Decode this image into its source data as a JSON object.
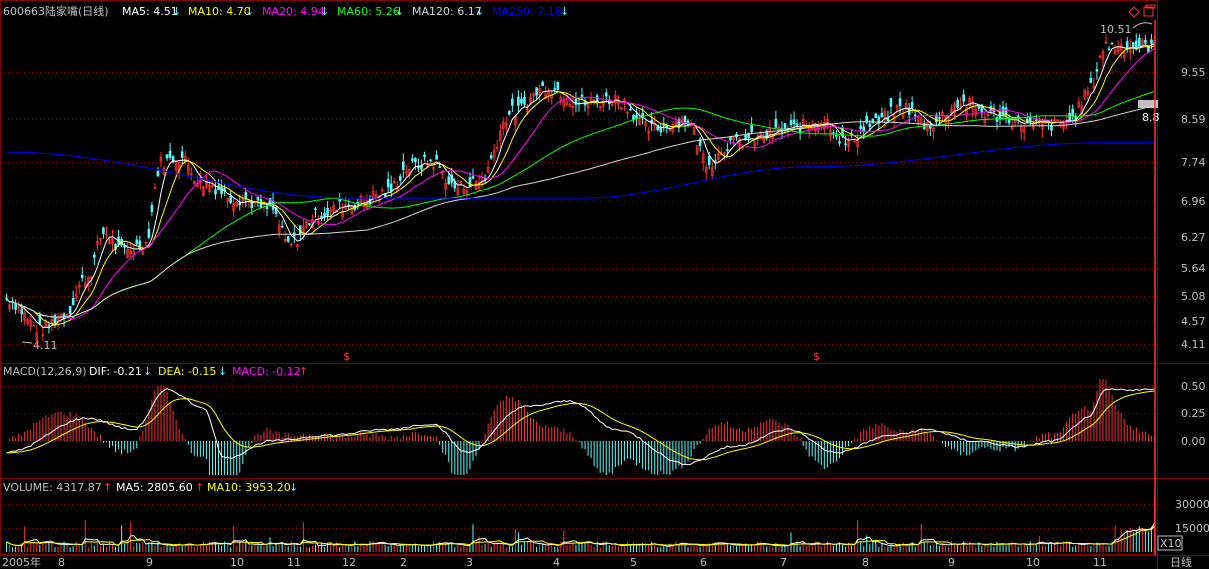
{
  "header": {
    "code": "600663",
    "name": "陆家嘴(日线)",
    "ma5": "MA5: 4.51",
    "ma10": "MA10: 4.70",
    "ma20": "MA20: 4.94",
    "ma60": "MA60: 5.26",
    "ma120": "MA120: 6.17",
    "ma250": "MA250: 7.18",
    "arrow_down": "↓",
    "arrow_up": "↑"
  },
  "price_panel": {
    "high_label": "10.51",
    "low_label": "4.11",
    "current_marker": "8.8",
    "ex_right_marks": [
      "$",
      "$"
    ],
    "y_ticks": [
      "9.55",
      "8.59",
      "7.74",
      "6.96",
      "6.27",
      "5.64",
      "5.08",
      "4.57",
      "4.11"
    ]
  },
  "macd_panel": {
    "title": "MACD(12,26,9)",
    "dif": "DIF: -0.21",
    "dea": "DEA: -0.15",
    "macd": "MACD: -0.12",
    "y_ticks": [
      "0.50",
      "0.25",
      "0.00"
    ]
  },
  "volume_panel": {
    "title": "VOLUME: 4317.87",
    "ma5": "MA5: 2805.60",
    "ma10": "MA10: 3953.20",
    "y_ticks": [
      "30000",
      "15000"
    ],
    "unit": "X10"
  },
  "x_axis": {
    "labels": [
      "2005年",
      "8",
      "9",
      "10",
      "11",
      "12",
      "2",
      "3",
      "4",
      "5",
      "6",
      "7",
      "8",
      "9",
      "10",
      "11"
    ],
    "period": "日线"
  },
  "colors": {
    "bg": "#000000",
    "grid": "#800000",
    "up": "#ff3232",
    "down": "#54fcfc",
    "ma5": "#ffffff",
    "ma10": "#ffff00",
    "ma20": "#ff00ff",
    "ma60": "#00ff00",
    "ma120": "#d8d8d8",
    "ma250": "#0000ff",
    "text": "#c0c0c0"
  },
  "chart_data": {
    "type": "candlestick",
    "y_axis_scale": "log",
    "price_ylim": [
      4.11,
      10.51
    ],
    "macd_ylim": [
      -0.3,
      0.5
    ],
    "volume_ylim": [
      0,
      30000
    ],
    "grid": true,
    "price_anchors": [
      [
        0,
        4.7
      ],
      [
        0.03,
        4.3
      ],
      [
        0.05,
        4.5
      ],
      [
        0.07,
        5.0
      ],
      [
        0.085,
        5.7
      ],
      [
        0.1,
        5.4
      ],
      [
        0.12,
        5.5
      ],
      [
        0.135,
        7.0
      ],
      [
        0.15,
        7.1
      ],
      [
        0.17,
        6.6
      ],
      [
        0.2,
        6.3
      ],
      [
        0.23,
        6.1
      ],
      [
        0.245,
        5.5
      ],
      [
        0.27,
        6.0
      ],
      [
        0.3,
        6.2
      ],
      [
        0.33,
        6.4
      ],
      [
        0.35,
        6.9
      ],
      [
        0.37,
        7.0
      ],
      [
        0.39,
        6.5
      ],
      [
        0.41,
        6.6
      ],
      [
        0.44,
        8.1
      ],
      [
        0.47,
        8.7
      ],
      [
        0.5,
        8.3
      ],
      [
        0.53,
        8.4
      ],
      [
        0.56,
        7.7
      ],
      [
        0.59,
        7.9
      ],
      [
        0.61,
        7.0
      ],
      [
        0.63,
        7.4
      ],
      [
        0.65,
        7.5
      ],
      [
        0.68,
        7.7
      ],
      [
        0.71,
        7.9
      ],
      [
        0.73,
        7.4
      ],
      [
        0.75,
        7.8
      ],
      [
        0.78,
        8.2
      ],
      [
        0.8,
        7.8
      ],
      [
        0.83,
        8.3
      ],
      [
        0.86,
        8.0
      ],
      [
        0.89,
        7.8
      ],
      [
        0.91,
        7.8
      ],
      [
        0.925,
        7.9
      ],
      [
        0.94,
        8.6
      ],
      [
        0.955,
        9.8
      ]
    ],
    "ma250_anchors": [
      [
        0,
        7.2
      ],
      [
        0.3,
        6.3
      ],
      [
        0.5,
        6.3
      ],
      [
        0.7,
        6.9
      ],
      [
        0.955,
        7.4
      ]
    ],
    "macd_anchors": [
      [
        0,
        -0.1
      ],
      [
        0.07,
        0.2
      ],
      [
        0.11,
        0.1
      ],
      [
        0.14,
        0.45
      ],
      [
        0.17,
        0.3
      ],
      [
        0.19,
        -0.15
      ],
      [
        0.23,
        0.0
      ],
      [
        0.28,
        0.05
      ],
      [
        0.33,
        0.1
      ],
      [
        0.37,
        0.15
      ],
      [
        0.4,
        -0.1
      ],
      [
        0.45,
        0.3
      ],
      [
        0.49,
        0.35
      ],
      [
        0.53,
        0.1
      ],
      [
        0.59,
        -0.2
      ],
      [
        0.63,
        -0.05
      ],
      [
        0.68,
        0.1
      ],
      [
        0.72,
        -0.1
      ],
      [
        0.77,
        0.05
      ],
      [
        0.8,
        0.1
      ],
      [
        0.84,
        0.0
      ],
      [
        0.88,
        -0.05
      ],
      [
        0.91,
        0.0
      ],
      [
        0.94,
        0.2
      ],
      [
        0.955,
        0.45
      ]
    ]
  }
}
